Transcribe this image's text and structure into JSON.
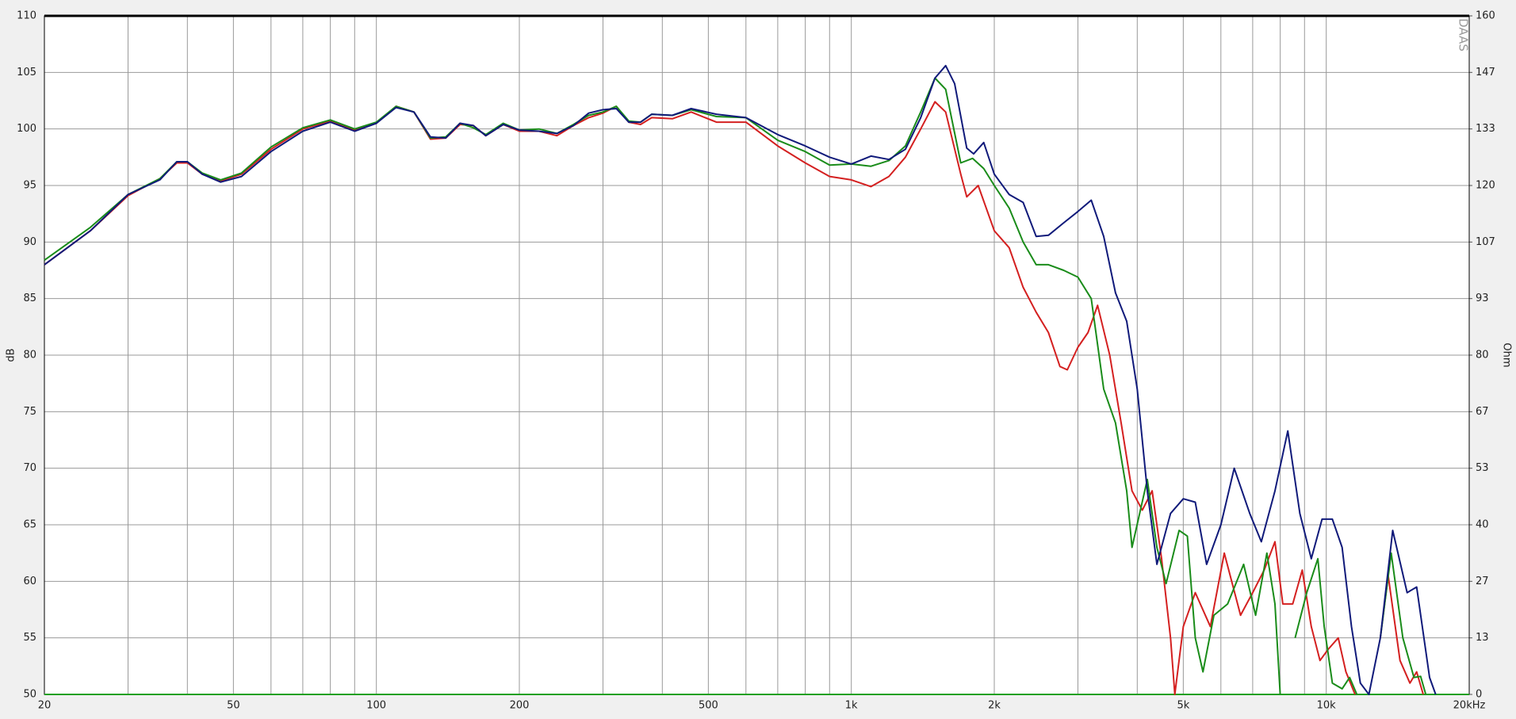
{
  "chart_data": {
    "type": "line",
    "y_label": "dB",
    "y2_label": "Ohm",
    "watermark": "DAAS",
    "log_x": true,
    "grid": true,
    "xlim": [
      20,
      20000
    ],
    "ylim": [
      50,
      110
    ],
    "y2lim": [
      0,
      160
    ],
    "xticks": [
      20,
      50,
      100,
      200,
      500,
      {
        "value": 1000,
        "label": "1k"
      },
      {
        "value": 2000,
        "label": "2k"
      },
      {
        "value": 5000,
        "label": "5k"
      },
      {
        "value": 10000,
        "label": "10k"
      },
      {
        "value": 20000,
        "label": "20kHz"
      }
    ],
    "xgrid_minor": [
      30,
      40,
      60,
      70,
      80,
      90,
      300,
      400,
      600,
      700,
      800,
      900,
      3000,
      4000,
      6000,
      7000,
      8000,
      9000
    ],
    "yticks": [
      50,
      55,
      60,
      65,
      70,
      75,
      80,
      85,
      90,
      95,
      100,
      105,
      110
    ],
    "y2ticks": [
      0,
      {
        "value": 13.333,
        "label": "13"
      },
      {
        "value": 26.667,
        "label": "27"
      },
      40,
      {
        "value": 53.333,
        "label": "53"
      },
      {
        "value": 66.667,
        "label": "67"
      },
      80,
      {
        "value": 93.333,
        "label": "93"
      },
      {
        "value": 106.667,
        "label": "107"
      },
      120,
      {
        "value": 133.333,
        "label": "133"
      },
      {
        "value": 146.667,
        "label": "147"
      },
      160
    ],
    "series": [
      {
        "color": "#20a020",
        "axis": "y2",
        "x": [
          20,
          20000
        ],
        "values": [
          0,
          0
        ]
      },
      {
        "color": "#d42020",
        "x": [
          20,
          25,
          30,
          35,
          38,
          40,
          43,
          47,
          52,
          60,
          70,
          80,
          90,
          100,
          110,
          120,
          130,
          140,
          150,
          160,
          170,
          185,
          200,
          220,
          240,
          260,
          280,
          300,
          320,
          340,
          360,
          380,
          420,
          460,
          520,
          600,
          700,
          800,
          900,
          1000,
          1100,
          1200,
          1300,
          1400,
          1500,
          1580,
          1700,
          1750,
          1850,
          2000,
          2150,
          2300,
          2450,
          2600,
          2750,
          2850,
          3000,
          3150,
          3300,
          3500,
          3700,
          3900,
          4100,
          4300,
          4500,
          4700,
          4800,
          5000,
          5300,
          5700,
          6100,
          6600,
          7000,
          7400,
          7800,
          8100,
          8500,
          8900,
          9300,
          9700,
          10100,
          10600,
          11000,
          11500,
          12200,
          13000,
          13500,
          14300,
          15000,
          15500,
          16000
        ],
        "values": [
          88,
          91,
          94.1,
          95.6,
          97,
          97,
          96,
          95.4,
          96,
          98.2,
          100,
          100.7,
          99.9,
          100.5,
          102,
          101.5,
          99.1,
          99.2,
          100.4,
          100.3,
          99.4,
          100.4,
          99.8,
          99.8,
          99.4,
          100.3,
          101,
          101.4,
          102,
          100.6,
          100.4,
          101,
          100.9,
          101.5,
          100.6,
          100.6,
          98.5,
          97,
          95.8,
          95.5,
          94.9,
          95.8,
          97.5,
          100,
          102.4,
          101.5,
          96,
          94,
          95,
          91,
          89.5,
          86,
          83.8,
          82,
          79,
          78.7,
          80.7,
          82,
          84.4,
          80,
          74,
          68,
          66.3,
          68,
          62,
          55,
          50,
          56,
          59,
          56,
          62.5,
          57,
          59,
          61,
          63.5,
          58,
          58,
          61,
          56,
          53,
          54,
          55,
          52,
          50,
          null,
          55,
          60.5,
          53,
          51,
          52,
          50
        ]
      },
      {
        "color": "#1a8c1a",
        "x": [
          20,
          25,
          30,
          35,
          38,
          40,
          43,
          47,
          52,
          60,
          70,
          80,
          90,
          100,
          110,
          120,
          130,
          140,
          150,
          160,
          170,
          185,
          200,
          220,
          240,
          260,
          280,
          300,
          320,
          340,
          360,
          380,
          420,
          460,
          520,
          600,
          700,
          800,
          900,
          1000,
          1100,
          1200,
          1300,
          1400,
          1500,
          1580,
          1700,
          1800,
          1900,
          2000,
          2150,
          2300,
          2450,
          2600,
          2800,
          3000,
          3200,
          3400,
          3600,
          3800,
          3900,
          4200,
          4400,
          4600,
          4900,
          5100,
          5300,
          5500,
          5800,
          6200,
          6700,
          7100,
          7500,
          7800,
          8000,
          8300,
          8600,
          9100,
          9600,
          9900,
          10300,
          10800,
          11200,
          11600,
          12300,
          13000,
          13700,
          14500,
          15300,
          15800,
          16200
        ],
        "values": [
          88.4,
          91.3,
          94.2,
          95.6,
          97.1,
          97.1,
          96.1,
          95.5,
          96.1,
          98.4,
          100.1,
          100.8,
          100,
          100.6,
          102,
          101.5,
          99.2,
          99.3,
          100.5,
          100.1,
          99.5,
          100.5,
          99.9,
          100,
          99.6,
          100.4,
          101.2,
          101.5,
          102,
          100.7,
          100.6,
          101.3,
          101.2,
          101.7,
          101.1,
          101,
          99,
          98,
          96.8,
          96.9,
          96.7,
          97.2,
          98.5,
          101.5,
          104.5,
          103.5,
          97,
          97.4,
          96.5,
          95,
          93,
          90,
          88,
          88,
          87.5,
          86.9,
          85,
          77,
          74,
          68,
          63,
          69,
          63,
          59.8,
          64.5,
          64,
          55,
          52,
          57,
          58,
          61.5,
          57,
          62.5,
          58,
          50,
          null,
          55,
          59,
          62,
          56,
          51,
          50.5,
          51.5,
          50,
          null,
          55,
          62.5,
          55,
          51.5,
          51.6,
          50
        ]
      },
      {
        "color": "#101a7a",
        "x": [
          20,
          25,
          30,
          35,
          38,
          40,
          43,
          47,
          52,
          60,
          70,
          80,
          90,
          100,
          110,
          120,
          130,
          140,
          150,
          160,
          170,
          185,
          200,
          220,
          240,
          260,
          280,
          300,
          320,
          340,
          360,
          380,
          420,
          460,
          520,
          600,
          700,
          800,
          900,
          1000,
          1100,
          1200,
          1300,
          1400,
          1500,
          1580,
          1650,
          1750,
          1810,
          1900,
          2000,
          2150,
          2300,
          2450,
          2600,
          2800,
          3000,
          3200,
          3400,
          3600,
          3800,
          4000,
          4200,
          4400,
          4700,
          5000,
          5300,
          5600,
          6000,
          6400,
          6900,
          7300,
          7800,
          8300,
          8800,
          9300,
          9800,
          10300,
          10800,
          11300,
          11800,
          12300,
          13000,
          13800,
          14800,
          15500,
          16500,
          17000
        ],
        "values": [
          88,
          91,
          94.2,
          95.5,
          97.1,
          97.1,
          96,
          95.3,
          95.8,
          98,
          99.8,
          100.6,
          99.8,
          100.5,
          101.9,
          101.5,
          99.3,
          99.2,
          100.5,
          100.3,
          99.4,
          100.4,
          99.9,
          99.8,
          99.6,
          100.3,
          101.4,
          101.7,
          101.8,
          100.6,
          100.6,
          101.3,
          101.2,
          101.8,
          101.3,
          101,
          99.5,
          98.5,
          97.5,
          96.9,
          97.6,
          97.3,
          98.2,
          101,
          104.5,
          105.6,
          104,
          98.3,
          97.8,
          98.8,
          96,
          94.2,
          93.5,
          90.5,
          90.6,
          91.7,
          92.7,
          93.7,
          90.5,
          85.5,
          83,
          77,
          68,
          61.5,
          66,
          67.3,
          67,
          61.5,
          65,
          70,
          66,
          63.5,
          68,
          73.3,
          66,
          62,
          65.5,
          65.5,
          63,
          56,
          51,
          50,
          55,
          64.5,
          59,
          59.5,
          51.5,
          50
        ]
      }
    ]
  }
}
